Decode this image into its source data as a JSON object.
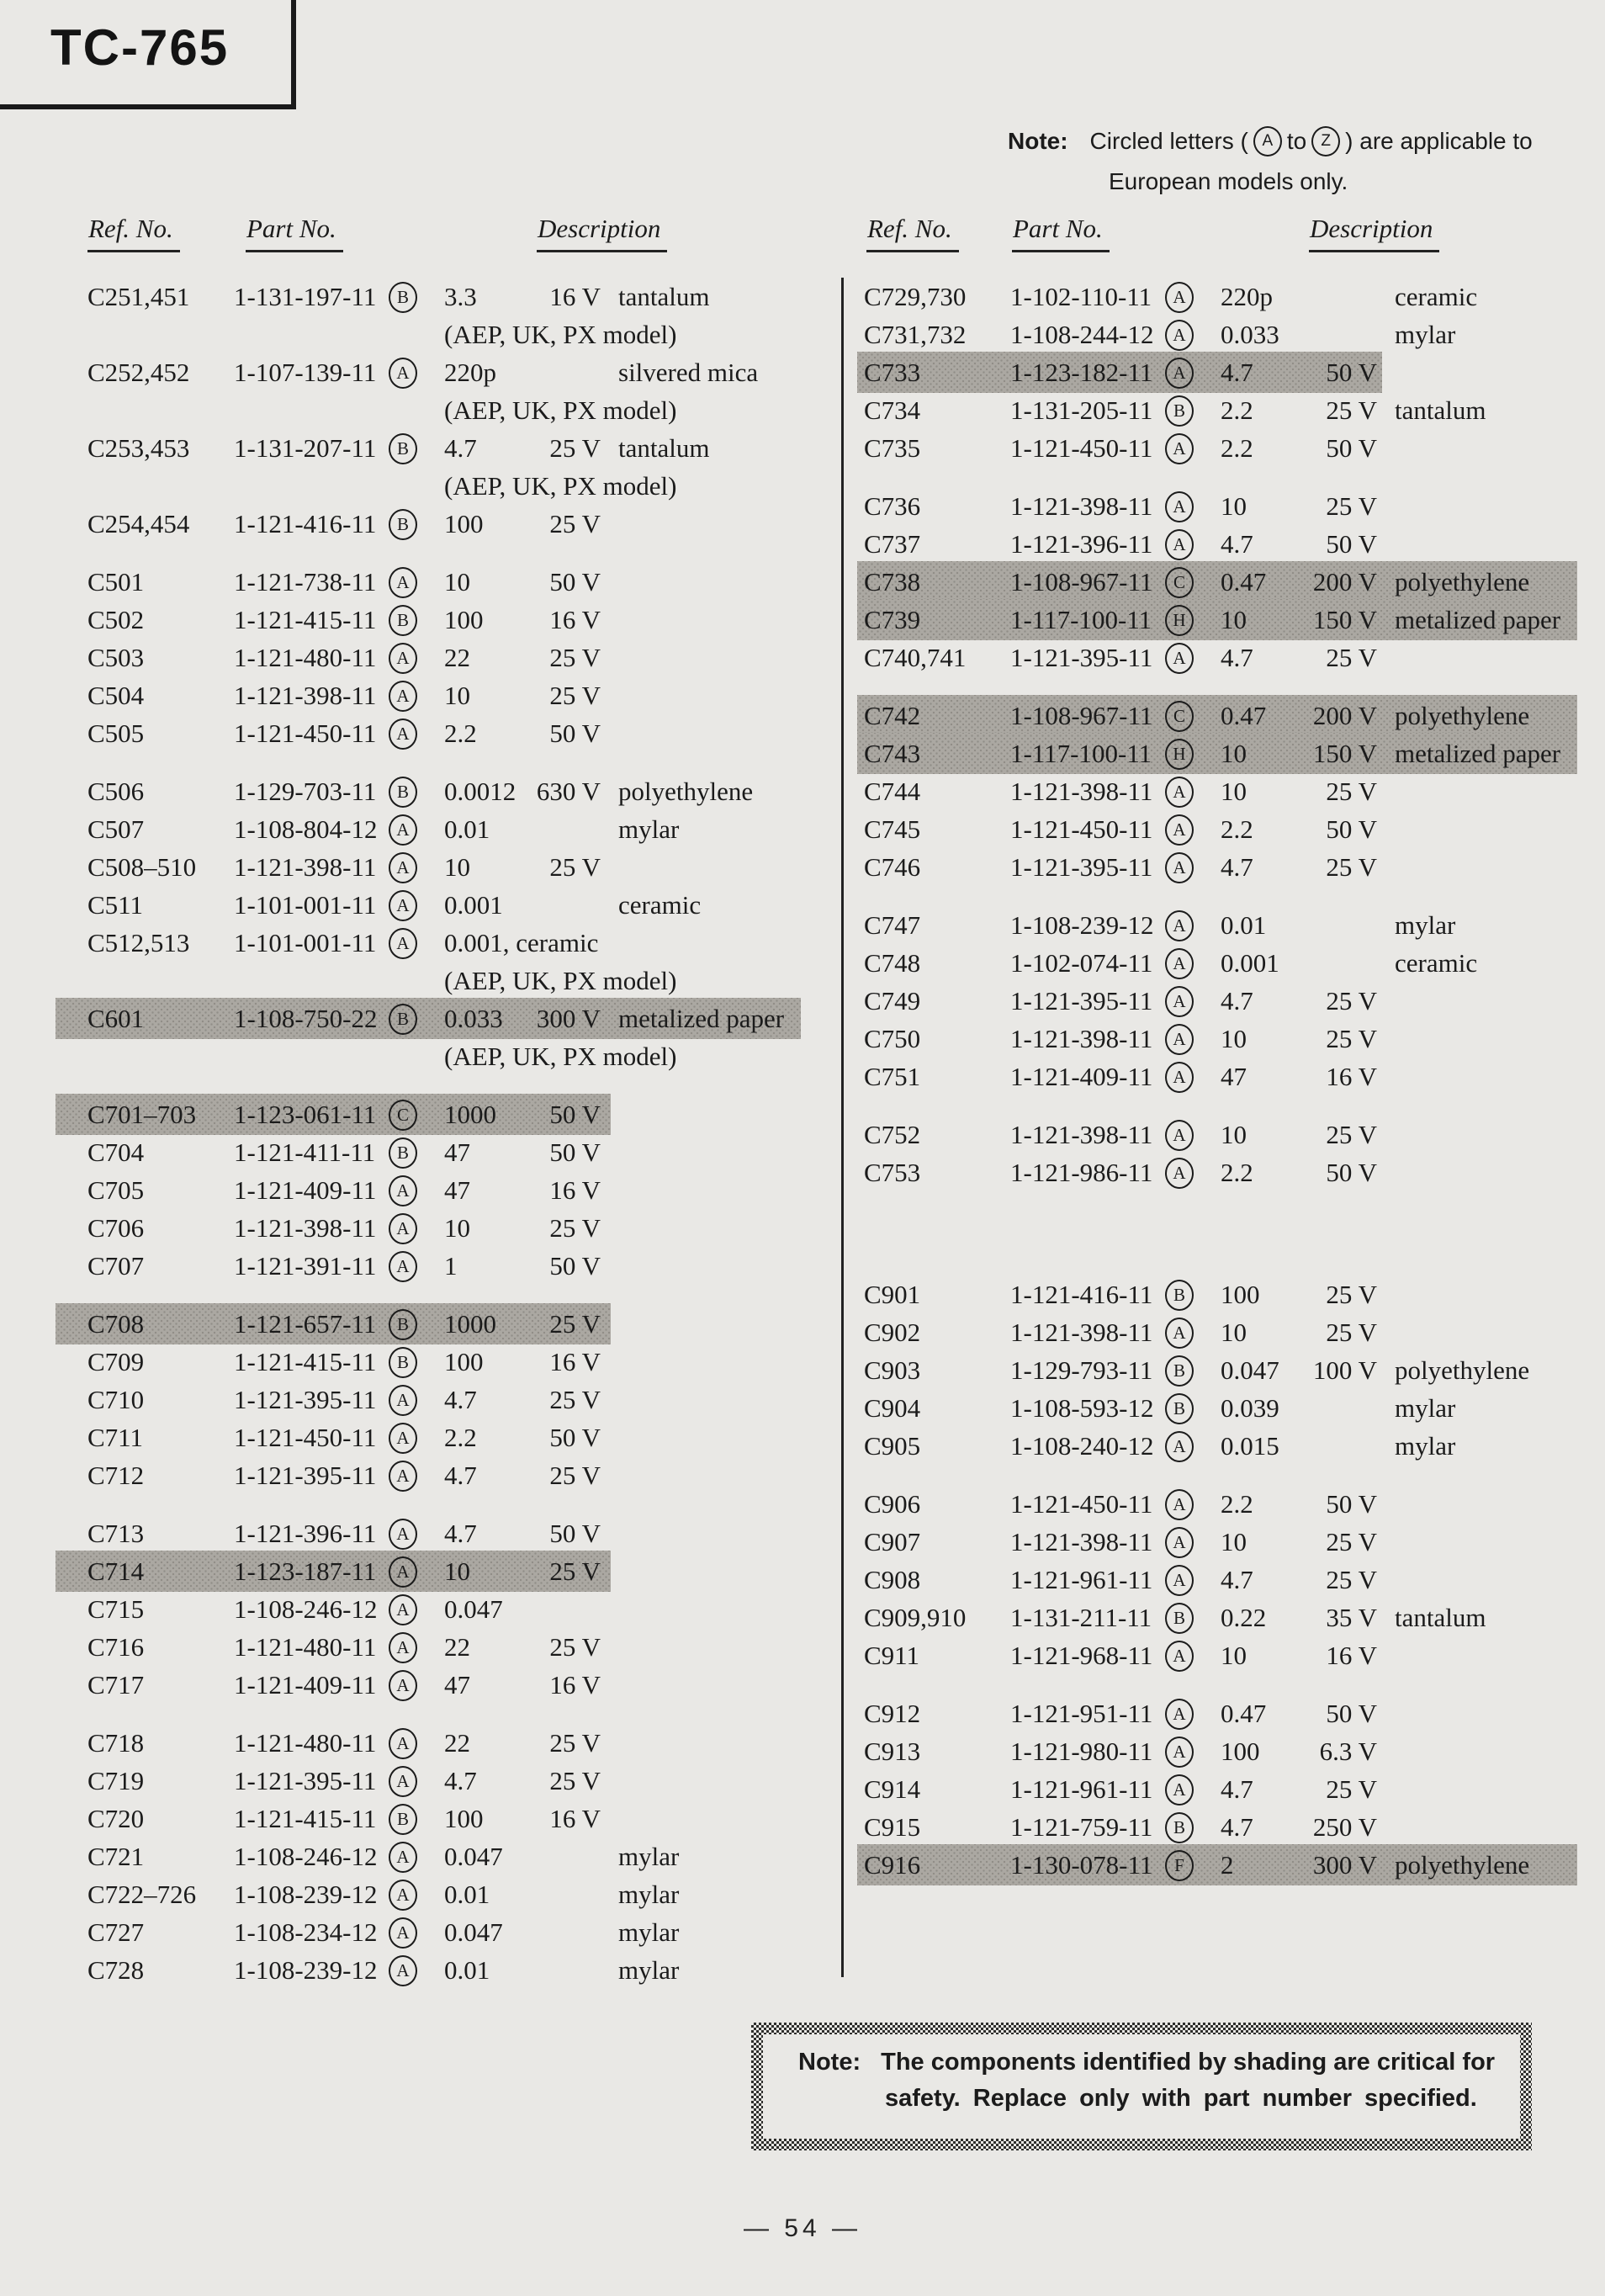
{
  "title": "TC-765",
  "top_note": {
    "label": "Note:",
    "before_circles": "Circled letters (",
    "circle_a": "A",
    "between": "to",
    "circle_z": "Z",
    "after_circles": ") are applicable to",
    "line2": "European models only."
  },
  "table_headers": {
    "ref": "Ref. No.",
    "part": "Part No.",
    "desc": "Description"
  },
  "safety_note": {
    "label": "Note:",
    "line1": "The components identified by shading are critical for",
    "line2": "safety.  Replace only with part number specified."
  },
  "page_number": "— 54 —",
  "colors": {
    "paper": "#e9e8e5",
    "ink": "#1b1b1b",
    "shade_grey": "#aba8a2"
  },
  "columns": {
    "left": [
      {
        "t": "r",
        "ref": "C251,451",
        "part": "1-131-197-11",
        "cl": "B",
        "val": "3.3",
        "volt": "16 V",
        "desc": "tantalum"
      },
      {
        "t": "n",
        "text": "(AEP, UK, PX model)"
      },
      {
        "t": "r",
        "ref": "C252,452",
        "part": "1-107-139-11",
        "cl": "A",
        "val": "220p",
        "desc": "silvered mica"
      },
      {
        "t": "n",
        "text": "(AEP, UK, PX model)"
      },
      {
        "t": "r",
        "ref": "C253,453",
        "part": "1-131-207-11",
        "cl": "B",
        "val": "4.7",
        "volt": "25 V",
        "desc": "tantalum"
      },
      {
        "t": "n",
        "text": "(AEP, UK, PX model)"
      },
      {
        "t": "r",
        "ref": "C254,454",
        "part": "1-121-416-11",
        "cl": "B",
        "val": "100",
        "volt": "25 V"
      },
      {
        "t": "s"
      },
      {
        "t": "r",
        "ref": "C501",
        "part": "1-121-738-11",
        "cl": "A",
        "val": "10",
        "volt": "50 V"
      },
      {
        "t": "r",
        "ref": "C502",
        "part": "1-121-415-11",
        "cl": "B",
        "val": "100",
        "volt": "16 V"
      },
      {
        "t": "r",
        "ref": "C503",
        "part": "1-121-480-11",
        "cl": "A",
        "val": "22",
        "volt": "25 V"
      },
      {
        "t": "r",
        "ref": "C504",
        "part": "1-121-398-11",
        "cl": "A",
        "val": "10",
        "volt": "25 V"
      },
      {
        "t": "r",
        "ref": "C505",
        "part": "1-121-450-11",
        "cl": "A",
        "val": "2.2",
        "volt": "50 V"
      },
      {
        "t": "s"
      },
      {
        "t": "r",
        "ref": "C506",
        "part": "1-129-703-11",
        "cl": "B",
        "val": "0.0012",
        "volt": "630 V",
        "desc": "polyethylene"
      },
      {
        "t": "r",
        "ref": "C507",
        "part": "1-108-804-12",
        "cl": "A",
        "val": "0.01",
        "desc": "mylar"
      },
      {
        "t": "r",
        "ref": "C508–510",
        "part": "1-121-398-11",
        "cl": "A",
        "val": "10",
        "volt": "25 V"
      },
      {
        "t": "r",
        "ref": "C511",
        "part": "1-101-001-11",
        "cl": "A",
        "val": "0.001",
        "desc": "ceramic"
      },
      {
        "t": "r",
        "ref": "C512,513",
        "part": "1-101-001-11",
        "cl": "A",
        "val": "0.001, ceramic"
      },
      {
        "t": "n",
        "text": "(AEP, UK, PX model)"
      },
      {
        "t": "r",
        "ref": "C601",
        "part": "1-108-750-22",
        "cl": "B",
        "val": "0.033",
        "volt": "300 V",
        "desc": "metalized paper",
        "shade": "wide"
      },
      {
        "t": "n",
        "text": "(AEP, UK, PX model)"
      },
      {
        "t": "s"
      },
      {
        "t": "r",
        "ref": "C701–703",
        "part": "1-123-061-11",
        "cl": "C",
        "val": "1000",
        "volt": "50 V",
        "shade": "mid"
      },
      {
        "t": "r",
        "ref": "C704",
        "part": "1-121-411-11",
        "cl": "B",
        "val": "47",
        "volt": "50 V"
      },
      {
        "t": "r",
        "ref": "C705",
        "part": "1-121-409-11",
        "cl": "A",
        "val": "47",
        "volt": "16 V"
      },
      {
        "t": "r",
        "ref": "C706",
        "part": "1-121-398-11",
        "cl": "A",
        "val": "10",
        "volt": "25 V"
      },
      {
        "t": "r",
        "ref": "C707",
        "part": "1-121-391-11",
        "cl": "A",
        "val": "1",
        "volt": "50 V"
      },
      {
        "t": "s"
      },
      {
        "t": "r",
        "ref": "C708",
        "part": "1-121-657-11",
        "cl": "B",
        "val": "1000",
        "volt": "25 V",
        "shade": "mid"
      },
      {
        "t": "r",
        "ref": "C709",
        "part": "1-121-415-11",
        "cl": "B",
        "val": "100",
        "volt": "16 V"
      },
      {
        "t": "r",
        "ref": "C710",
        "part": "1-121-395-11",
        "cl": "A",
        "val": "4.7",
        "volt": "25 V"
      },
      {
        "t": "r",
        "ref": "C711",
        "part": "1-121-450-11",
        "cl": "A",
        "val": "2.2",
        "volt": "50 V"
      },
      {
        "t": "r",
        "ref": "C712",
        "part": "1-121-395-11",
        "cl": "A",
        "val": "4.7",
        "volt": "25 V"
      },
      {
        "t": "s"
      },
      {
        "t": "r",
        "ref": "C713",
        "part": "1-121-396-11",
        "cl": "A",
        "val": "4.7",
        "volt": "50 V"
      },
      {
        "t": "r",
        "ref": "C714",
        "part": "1-123-187-11",
        "cl": "A",
        "val": "10",
        "volt": "25 V",
        "shade": "mid"
      },
      {
        "t": "r",
        "ref": "C715",
        "part": "1-108-246-12",
        "cl": "A",
        "val": "0.047"
      },
      {
        "t": "r",
        "ref": "C716",
        "part": "1-121-480-11",
        "cl": "A",
        "val": "22",
        "volt": "25 V"
      },
      {
        "t": "r",
        "ref": "C717",
        "part": "1-121-409-11",
        "cl": "A",
        "val": "47",
        "volt": "16 V"
      },
      {
        "t": "s"
      },
      {
        "t": "r",
        "ref": "C718",
        "part": "1-121-480-11",
        "cl": "A",
        "val": "22",
        "volt": "25 V"
      },
      {
        "t": "r",
        "ref": "C719",
        "part": "1-121-395-11",
        "cl": "A",
        "val": "4.7",
        "volt": "25 V"
      },
      {
        "t": "r",
        "ref": "C720",
        "part": "1-121-415-11",
        "cl": "B",
        "val": "100",
        "volt": "16 V"
      },
      {
        "t": "r",
        "ref": "C721",
        "part": "1-108-246-12",
        "cl": "A",
        "val": "0.047",
        "desc": "mylar"
      },
      {
        "t": "r",
        "ref": "C722–726",
        "part": "1-108-239-12",
        "cl": "A",
        "val": "0.01",
        "desc": "mylar"
      },
      {
        "t": "r",
        "ref": "C727",
        "part": "1-108-234-12",
        "cl": "A",
        "val": "0.047",
        "desc": "mylar"
      },
      {
        "t": "r",
        "ref": "C728",
        "part": "1-108-239-12",
        "cl": "A",
        "val": "0.01",
        "desc": "mylar"
      }
    ],
    "right": [
      {
        "t": "r",
        "ref": "C729,730",
        "part": "1-102-110-11",
        "cl": "A",
        "val": "220p",
        "desc": "ceramic"
      },
      {
        "t": "r",
        "ref": "C731,732",
        "part": "1-108-244-12",
        "cl": "A",
        "val": "0.033",
        "desc": "mylar"
      },
      {
        "t": "r",
        "ref": "C733",
        "part": "1-123-182-11",
        "cl": "A",
        "val": "4.7",
        "volt": "50 V",
        "shade": "mid"
      },
      {
        "t": "r",
        "ref": "C734",
        "part": "1-131-205-11",
        "cl": "B",
        "val": "2.2",
        "volt": "25 V",
        "desc": "tantalum"
      },
      {
        "t": "r",
        "ref": "C735",
        "part": "1-121-450-11",
        "cl": "A",
        "val": "2.2",
        "volt": "50 V"
      },
      {
        "t": "s"
      },
      {
        "t": "r",
        "ref": "C736",
        "part": "1-121-398-11",
        "cl": "A",
        "val": "10",
        "volt": "25 V"
      },
      {
        "t": "r",
        "ref": "C737",
        "part": "1-121-396-11",
        "cl": "A",
        "val": "4.7",
        "volt": "50 V"
      },
      {
        "t": "r",
        "ref": "C738",
        "part": "1-108-967-11",
        "cl": "C",
        "val": "0.47",
        "volt": "200 V",
        "desc": "polyethylene",
        "shade": "wide"
      },
      {
        "t": "r",
        "ref": "C739",
        "part": "1-117-100-11",
        "cl": "H",
        "val": "10",
        "volt": "150 V",
        "desc": "metalized paper",
        "shade": "wide"
      },
      {
        "t": "r",
        "ref": "C740,741",
        "part": "1-121-395-11",
        "cl": "A",
        "val": "4.7",
        "volt": "25 V"
      },
      {
        "t": "s"
      },
      {
        "t": "r",
        "ref": "C742",
        "part": "1-108-967-11",
        "cl": "C",
        "val": "0.47",
        "volt": "200 V",
        "desc": "polyethylene",
        "shade": "wide"
      },
      {
        "t": "r",
        "ref": "C743",
        "part": "1-117-100-11",
        "cl": "H",
        "val": "10",
        "volt": "150 V",
        "desc": "metalized paper",
        "shade": "wide"
      },
      {
        "t": "r",
        "ref": "C744",
        "part": "1-121-398-11",
        "cl": "A",
        "val": "10",
        "volt": "25 V"
      },
      {
        "t": "r",
        "ref": "C745",
        "part": "1-121-450-11",
        "cl": "A",
        "val": "2.2",
        "volt": "50 V"
      },
      {
        "t": "r",
        "ref": "C746",
        "part": "1-121-395-11",
        "cl": "A",
        "val": "4.7",
        "volt": "25 V"
      },
      {
        "t": "s"
      },
      {
        "t": "r",
        "ref": "C747",
        "part": "1-108-239-12",
        "cl": "A",
        "val": "0.01",
        "desc": "mylar"
      },
      {
        "t": "r",
        "ref": "C748",
        "part": "1-102-074-11",
        "cl": "A",
        "val": "0.001",
        "desc": "ceramic"
      },
      {
        "t": "r",
        "ref": "C749",
        "part": "1-121-395-11",
        "cl": "A",
        "val": "4.7",
        "volt": "25 V"
      },
      {
        "t": "r",
        "ref": "C750",
        "part": "1-121-398-11",
        "cl": "A",
        "val": "10",
        "volt": "25 V"
      },
      {
        "t": "r",
        "ref": "C751",
        "part": "1-121-409-11",
        "cl": "A",
        "val": "47",
        "volt": "16 V"
      },
      {
        "t": "s"
      },
      {
        "t": "r",
        "ref": "C752",
        "part": "1-121-398-11",
        "cl": "A",
        "val": "10",
        "volt": "25 V"
      },
      {
        "t": "r",
        "ref": "C753",
        "part": "1-121-986-11",
        "cl": "A",
        "val": "2.2",
        "volt": "50 V"
      },
      {
        "t": "s",
        "big": true
      },
      {
        "t": "r",
        "ref": "C901",
        "part": "1-121-416-11",
        "cl": "B",
        "val": "100",
        "volt": "25 V"
      },
      {
        "t": "r",
        "ref": "C902",
        "part": "1-121-398-11",
        "cl": "A",
        "val": "10",
        "volt": "25 V"
      },
      {
        "t": "r",
        "ref": "C903",
        "part": "1-129-793-11",
        "cl": "B",
        "val": "0.047",
        "volt": "100 V",
        "desc": "polyethylene"
      },
      {
        "t": "r",
        "ref": "C904",
        "part": "1-108-593-12",
        "cl": "B",
        "val": "0.039",
        "desc": "mylar"
      },
      {
        "t": "r",
        "ref": "C905",
        "part": "1-108-240-12",
        "cl": "A",
        "val": "0.015",
        "desc": "mylar"
      },
      {
        "t": "s"
      },
      {
        "t": "r",
        "ref": "C906",
        "part": "1-121-450-11",
        "cl": "A",
        "val": "2.2",
        "volt": "50 V"
      },
      {
        "t": "r",
        "ref": "C907",
        "part": "1-121-398-11",
        "cl": "A",
        "val": "10",
        "volt": "25 V"
      },
      {
        "t": "r",
        "ref": "C908",
        "part": "1-121-961-11",
        "cl": "A",
        "val": "4.7",
        "volt": "25 V"
      },
      {
        "t": "r",
        "ref": "C909,910",
        "part": "1-131-211-11",
        "cl": "B",
        "val": "0.22",
        "volt": "35 V",
        "desc": "tantalum"
      },
      {
        "t": "r",
        "ref": "C911",
        "part": "1-121-968-11",
        "cl": "A",
        "val": "10",
        "volt": "16 V"
      },
      {
        "t": "s"
      },
      {
        "t": "r",
        "ref": "C912",
        "part": "1-121-951-11",
        "cl": "A",
        "val": "0.47",
        "volt": "50 V"
      },
      {
        "t": "r",
        "ref": "C913",
        "part": "1-121-980-11",
        "cl": "A",
        "val": "100",
        "volt": "6.3 V"
      },
      {
        "t": "r",
        "ref": "C914",
        "part": "1-121-961-11",
        "cl": "A",
        "val": "4.7",
        "volt": "25 V"
      },
      {
        "t": "r",
        "ref": "C915",
        "part": "1-121-759-11",
        "cl": "B",
        "val": "4.7",
        "volt": "250 V"
      },
      {
        "t": "r",
        "ref": "C916",
        "part": "1-130-078-11",
        "cl": "F",
        "val": "2",
        "volt": "300 V",
        "desc": "polyethylene",
        "shade": "wide"
      }
    ]
  }
}
